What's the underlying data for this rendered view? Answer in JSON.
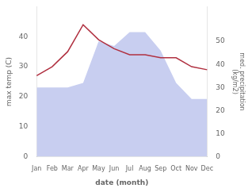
{
  "chart_data": {
    "type": "line",
    "categories": [
      "Jan",
      "Feb",
      "Mar",
      "Apr",
      "May",
      "Jun",
      "Jul",
      "Aug",
      "Sep",
      "Oct",
      "Nov",
      "Dec"
    ],
    "series": [
      {
        "type": "area",
        "axis": "y2",
        "color": "#c8cef0",
        "values": [
          30,
          30,
          30,
          32,
          50,
          48,
          54,
          54,
          46,
          32,
          25,
          25
        ]
      },
      {
        "type": "line",
        "color": "#b03040",
        "values": [
          27,
          30,
          35,
          44,
          39,
          36,
          34,
          34,
          33,
          33,
          30,
          29
        ]
      }
    ],
    "xlabel": "date (month)",
    "ylabel": "max temp (C)",
    "y2label": "med. precipitation\n(kg/m2)",
    "ylim": [
      0,
      50
    ],
    "yticks": [
      0,
      10,
      20,
      30,
      40
    ],
    "y2lim": [
      0,
      65
    ],
    "y2ticks": [
      0,
      10,
      20,
      30,
      40,
      50
    ],
    "grid": false
  }
}
